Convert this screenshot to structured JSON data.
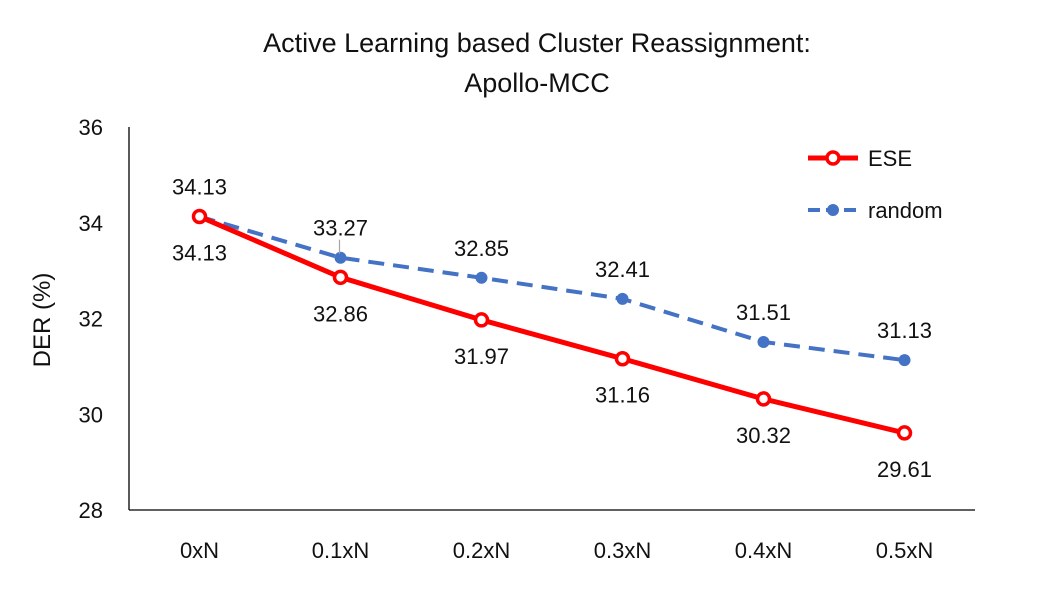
{
  "chart_data": {
    "type": "line",
    "title_lines": [
      "Active Learning based Cluster Reassignment:",
      "Apollo-MCC"
    ],
    "xlabel": "",
    "ylabel": "DER (%)",
    "categories": [
      "0xN",
      "0.1xN",
      "0.2xN",
      "0.3xN",
      "0.4xN",
      "0.5xN"
    ],
    "ylim": [
      28,
      36
    ],
    "yticks": [
      28,
      30,
      32,
      34,
      36
    ],
    "grid": false,
    "legend": "top-right",
    "series": [
      {
        "name": "ESE",
        "color": "#ff0000",
        "style": "solid",
        "marker": "ring",
        "values": [
          34.13,
          32.86,
          31.97,
          31.16,
          30.32,
          29.61
        ],
        "labels": [
          "34.13",
          "32.86",
          "31.97",
          "31.16",
          "30.32",
          "29.61"
        ],
        "label_position": "below"
      },
      {
        "name": "random",
        "color": "#4472c4",
        "style": "dashed",
        "marker": "dot",
        "values": [
          34.13,
          33.27,
          32.85,
          32.41,
          31.51,
          31.13
        ],
        "labels": [
          "34.13",
          "33.27",
          "32.85",
          "32.41",
          "31.51",
          "31.13"
        ],
        "label_position": "above"
      }
    ]
  }
}
